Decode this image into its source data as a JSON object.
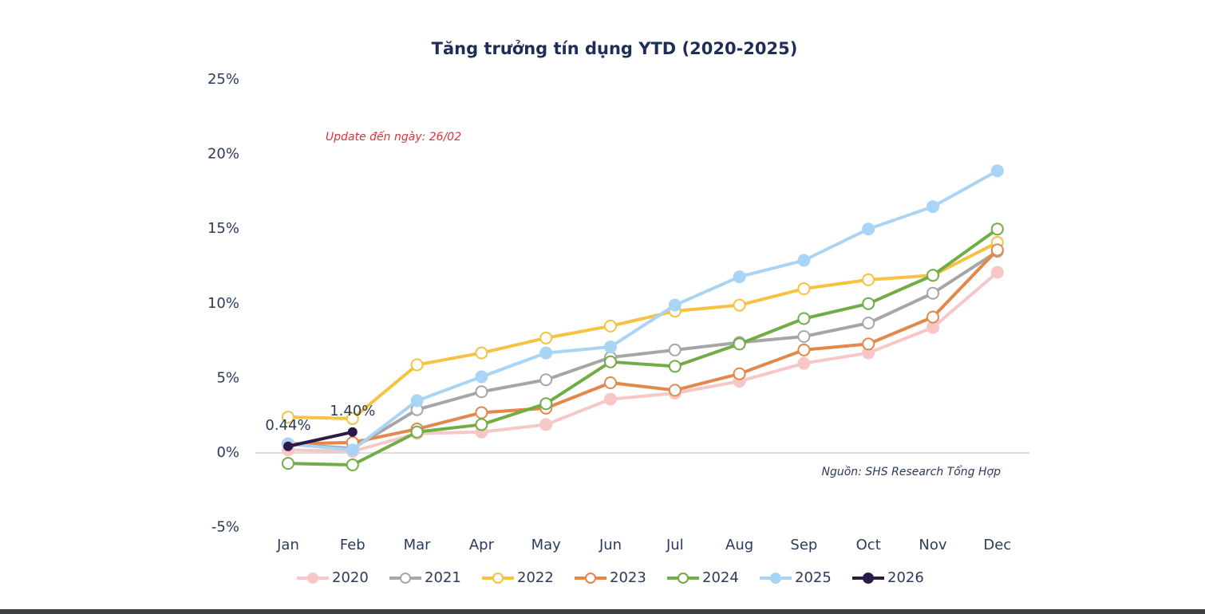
{
  "chart_data": {
    "type": "line",
    "title": "Tăng trưởng tín dụng YTD (2020-2025)",
    "annotations": [
      "Update đến ngày: 26/02",
      "Nguồn: SHS Research Tổng Hợp"
    ],
    "categories": [
      "Jan",
      "Feb",
      "Mar",
      "Apr",
      "May",
      "Jun",
      "Jul",
      "Aug",
      "Sep",
      "Oct",
      "Nov",
      "Dec"
    ],
    "ylim": [
      -5,
      25
    ],
    "yticks": [
      {
        "value": -5,
        "label": "-5%"
      },
      {
        "value": 0,
        "label": "0%"
      },
      {
        "value": 5,
        "label": "5%"
      },
      {
        "value": 10,
        "label": "10%"
      },
      {
        "value": 15,
        "label": "15%"
      },
      {
        "value": 20,
        "label": "20%"
      },
      {
        "value": 25,
        "label": "25%"
      }
    ],
    "grid": false,
    "legend": "bottom",
    "series": [
      {
        "name": "2020",
        "color": "#f7c6c7",
        "marker": "filled",
        "values": [
          0.2,
          0.1,
          1.3,
          1.4,
          1.9,
          3.6,
          4.0,
          4.8,
          6.0,
          6.7,
          8.4,
          12.1
        ]
      },
      {
        "name": "2021",
        "color": "#a6a6a6",
        "marker": "hollow",
        "values": [
          0.6,
          0.3,
          2.9,
          4.1,
          4.9,
          6.4,
          6.9,
          7.4,
          7.8,
          8.7,
          10.7,
          13.5
        ]
      },
      {
        "name": "2022",
        "color": "#f5c242",
        "marker": "hollow",
        "values": [
          2.4,
          2.3,
          5.9,
          6.7,
          7.7,
          8.5,
          9.5,
          9.9,
          11.0,
          11.6,
          11.9,
          14.1
        ]
      },
      {
        "name": "2023",
        "color": "#e4874a",
        "marker": "hollow",
        "values": [
          0.6,
          0.7,
          1.6,
          2.7,
          3.0,
          4.7,
          4.2,
          5.3,
          6.9,
          7.3,
          9.1,
          13.6
        ]
      },
      {
        "name": "2024",
        "color": "#71ad47",
        "marker": "hollow",
        "values": [
          -0.7,
          -0.8,
          1.4,
          1.9,
          3.3,
          6.1,
          5.8,
          7.3,
          9.0,
          10.0,
          11.9,
          15.0
        ]
      },
      {
        "name": "2025",
        "color": "#a9d4f5",
        "marker": "filled",
        "values": [
          0.6,
          0.2,
          3.5,
          5.1,
          6.7,
          7.1,
          9.9,
          11.8,
          12.9,
          15.0,
          16.5,
          18.9
        ]
      },
      {
        "name": "2026",
        "color": "#2e1a47",
        "marker": "filled",
        "values": [
          0.44,
          1.4,
          null,
          null,
          null,
          null,
          null,
          null,
          null,
          null,
          null,
          null
        ],
        "value_labels": [
          "0.44%",
          "1.40%",
          null,
          null,
          null,
          null,
          null,
          null,
          null,
          null,
          null,
          null
        ]
      }
    ]
  }
}
